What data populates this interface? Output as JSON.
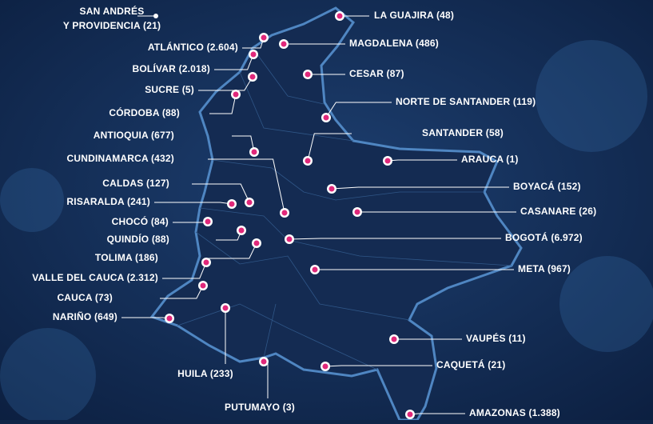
{
  "san_andres": {
    "lines": [
      "SAN ANDRÉS",
      "Y PROVIDENCIA (21)"
    ]
  },
  "regions": [
    {
      "label": "LA GUAJIRA (48)"
    },
    {
      "label": "ATLÁNTICO (2.604)"
    },
    {
      "label": "MAGDALENA (486)"
    },
    {
      "label": "BOLÍVAR (2.018)"
    },
    {
      "label": "CESAR (87)"
    },
    {
      "label": "SUCRE (5)"
    },
    {
      "label": "CÓRDOBA (88)"
    },
    {
      "label": "NORTE DE SANTANDER (119)"
    },
    {
      "label": "ANTIOQUIA (677)"
    },
    {
      "label": "SANTANDER (58)"
    },
    {
      "label": "ARAUCA (1)"
    },
    {
      "label": "CUNDINAMARCA (432)"
    },
    {
      "label": "CALDAS (127)"
    },
    {
      "label": "BOYACÁ (152)"
    },
    {
      "label": "RISARALDA (241)"
    },
    {
      "label": "CASANARE (26)"
    },
    {
      "label": "CHOCÓ (84)"
    },
    {
      "label": "QUINDÍO (88)"
    },
    {
      "label": "BOGOTÁ (6.972)"
    },
    {
      "label": "TOLIMA (186)"
    },
    {
      "label": "META (967)"
    },
    {
      "label": "VALLE DEL CAUCA (2.312)"
    },
    {
      "label": "CAUCA (73)"
    },
    {
      "label": "NARIÑO (649)"
    },
    {
      "label": "HUILA (233)"
    },
    {
      "label": "VAUPÉS (11)"
    },
    {
      "label": "CAQUETÁ (21)"
    },
    {
      "label": "PUTUMAYO (3)"
    },
    {
      "label": "AMAZONAS (1.388)"
    }
  ]
}
